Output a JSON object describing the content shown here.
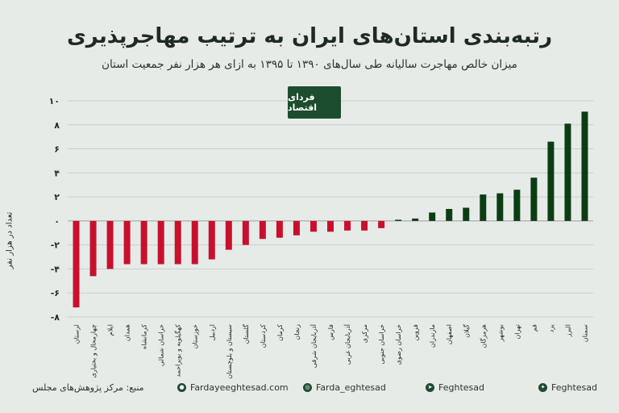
{
  "header": {
    "title": "رتبه‌بندی استان‌های ایران به ترتیب مهاجرپذیری",
    "subtitle": "میزان خالص مهاجرت سالیانه طی سال‌های ۱۳۹۰ تا ۱۳۹۵ به ازای هر هزار نفر جمعیت استان"
  },
  "logo": {
    "text": "فردای اقتصاد"
  },
  "footer": {
    "source": "منبع: مرکز پژوهش‌های مجلس",
    "website": "Fardayeeghtesad.com",
    "instagram": "Farda_eghtesad",
    "telegram": "Feghtesad",
    "twitter": "Feghtesad"
  },
  "colors": {
    "negative": "#c8102e",
    "positive": "#0b3d14",
    "background": "#e7ebe8"
  },
  "chart_data": {
    "type": "bar",
    "ylabel": "تعداد در هزار نفر",
    "ylim": [
      -8,
      10
    ],
    "yticks": [
      -8,
      -6,
      -4,
      -2,
      0,
      2,
      4,
      6,
      8,
      10
    ],
    "ytick_labels": [
      "-۸",
      "-۶",
      "-۴",
      "-۲",
      "۰",
      "۲",
      "۴",
      "۶",
      "۸",
      "۱۰"
    ],
    "grid": true,
    "categories": [
      "لرستان",
      "چهارمحال و بختیاری",
      "ایلام",
      "همدان",
      "کرمانشاه",
      "خراسان شمالی",
      "کهگیلویه و بویراحمد",
      "خوزستان",
      "اردبیل",
      "سیستان و بلوچستان",
      "گلستان",
      "کردستان",
      "کرمان",
      "زنجان",
      "آذربایجان شرقی",
      "فارس",
      "آذربایجان غربی",
      "مرکزی",
      "خراسان جنوبی",
      "خراسان رضوی",
      "قزوین",
      "مازندران",
      "اصفهان",
      "گیلان",
      "هرمزگان",
      "بوشهر",
      "تهران",
      "قم",
      "یزد",
      "البرز",
      "سمنان"
    ],
    "values": [
      -7.2,
      -4.6,
      -4.0,
      -3.6,
      -3.6,
      -3.6,
      -3.6,
      -3.6,
      -3.2,
      -2.4,
      -2.0,
      -1.5,
      -1.4,
      -1.2,
      -0.9,
      -0.9,
      -0.8,
      -0.8,
      -0.6,
      0.1,
      0.2,
      0.7,
      1.0,
      1.1,
      2.2,
      2.3,
      2.6,
      3.6,
      6.6,
      8.1,
      9.1
    ]
  }
}
